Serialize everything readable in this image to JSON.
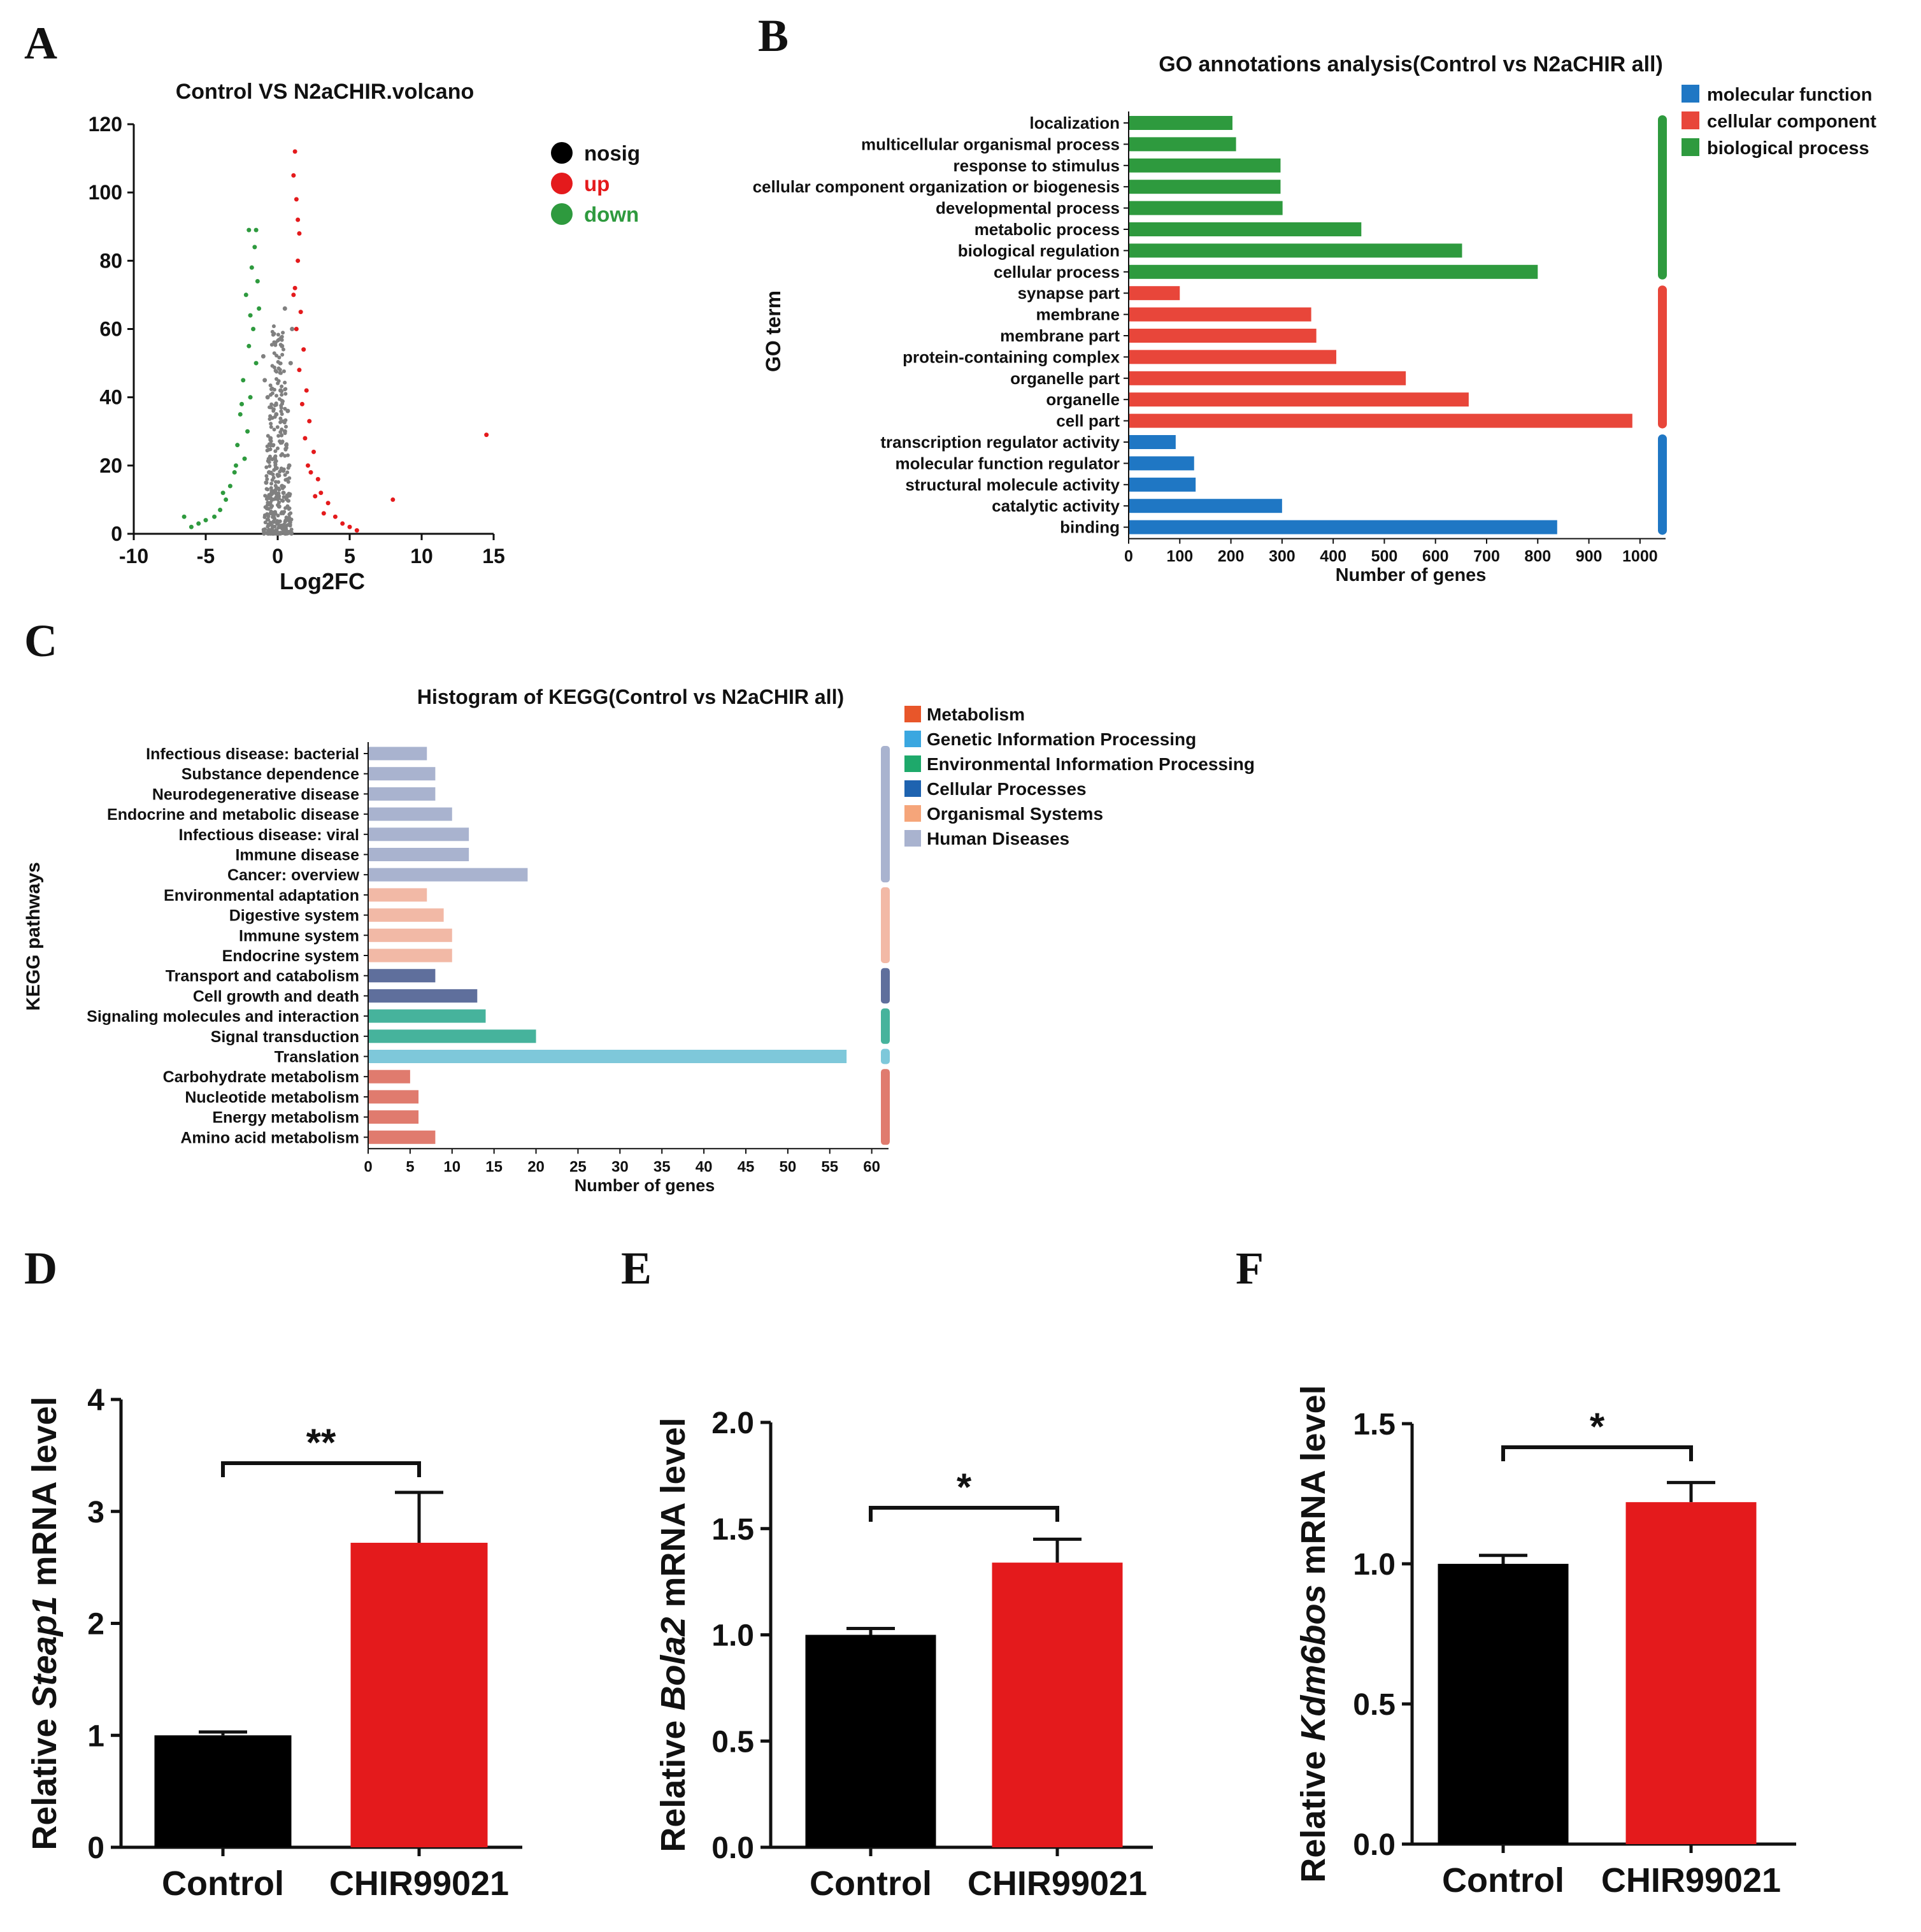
{
  "panels": {
    "A": "A",
    "B": "B",
    "C": "C",
    "D": "D",
    "E": "E",
    "F": "F"
  },
  "colors": {
    "nosig": "#808080",
    "up": "#e41a1c",
    "down": "#2e9a3e",
    "mf": "#1f77c4",
    "cc": "#e8463a",
    "bp": "#2e9a3e",
    "kegg_metabolism": "#e07b6e",
    "kegg_genetic": "#7ec8da",
    "kegg_env": "#46b39c",
    "kegg_cell": "#5f6f9c",
    "kegg_org": "#f2b9a6",
    "kegg_human": "#a9b3cf",
    "legend_metabolism": "#e8562a",
    "legend_genetic": "#3aa7e0",
    "legend_env": "#1ea96b",
    "legend_cell": "#1e63b0",
    "legend_org": "#f5a57a",
    "legend_human": "#a9b3cf",
    "black": "#000000",
    "red": "#e41a1c"
  },
  "chart_data": [
    {
      "id": "A",
      "type": "scatter",
      "title": "Control  VS  N2aCHIR.volcano",
      "xlabel": "Log2FC",
      "ylabel": "",
      "xlim": [
        -10,
        15
      ],
      "ylim": [
        0,
        120
      ],
      "xticks": [
        -10,
        -5,
        0,
        5,
        10,
        15
      ],
      "yticks": [
        0,
        20,
        40,
        60,
        80,
        100,
        120
      ],
      "legend": [
        {
          "label": "nosig",
          "key": "nosig"
        },
        {
          "label": "up",
          "key": "up"
        },
        {
          "label": "down",
          "key": "down"
        }
      ],
      "series": [
        {
          "name": "nosig",
          "points": [
            [
              -0.4,
              10
            ],
            [
              0.3,
              14
            ],
            [
              -0.2,
              22
            ],
            [
              0.5,
              30
            ],
            [
              0.1,
              8
            ],
            [
              -0.6,
              18
            ],
            [
              0.6,
              26
            ],
            [
              -0.1,
              35
            ],
            [
              0.2,
              42
            ],
            [
              -0.3,
              5
            ],
            [
              0.4,
              12
            ],
            [
              0.0,
              3
            ],
            [
              -0.8,
              15
            ],
            [
              0.8,
              20
            ],
            [
              -0.5,
              28
            ],
            [
              0.7,
              36
            ],
            [
              -0.7,
              40
            ],
            [
              0.9,
              50
            ],
            [
              -0.9,
              45
            ],
            [
              0.3,
              55
            ],
            [
              1.0,
              60
            ],
            [
              -1.0,
              52
            ],
            [
              0.5,
              66
            ],
            [
              0.2,
              2
            ],
            [
              -0.1,
              1
            ],
            [
              0.6,
              4
            ],
            [
              -0.4,
              6
            ]
          ]
        },
        {
          "name": "up",
          "points": [
            [
              1.2,
              112
            ],
            [
              1.1,
              105
            ],
            [
              1.3,
              98
            ],
            [
              1.5,
              88
            ],
            [
              1.4,
              80
            ],
            [
              1.2,
              72
            ],
            [
              1.6,
              65
            ],
            [
              1.3,
              60
            ],
            [
              1.8,
              54
            ],
            [
              1.5,
              48
            ],
            [
              2.0,
              42
            ],
            [
              1.7,
              38
            ],
            [
              2.2,
              33
            ],
            [
              1.9,
              28
            ],
            [
              2.5,
              24
            ],
            [
              2.1,
              20
            ],
            [
              2.8,
              16
            ],
            [
              3.0,
              12
            ],
            [
              3.5,
              9
            ],
            [
              3.2,
              6
            ],
            [
              4.0,
              5
            ],
            [
              4.5,
              3
            ],
            [
              5.0,
              2
            ],
            [
              5.5,
              1
            ],
            [
              8.0,
              10
            ],
            [
              14.5,
              29
            ],
            [
              1.1,
              70
            ],
            [
              1.4,
              92
            ],
            [
              2.3,
              18
            ],
            [
              2.6,
              11
            ]
          ]
        },
        {
          "name": "down",
          "points": [
            [
              -1.5,
              89
            ],
            [
              -2.0,
              89
            ],
            [
              -1.6,
              84
            ],
            [
              -1.8,
              78
            ],
            [
              -1.4,
              74
            ],
            [
              -2.2,
              70
            ],
            [
              -1.3,
              66
            ],
            [
              -1.7,
              60
            ],
            [
              -2.0,
              55
            ],
            [
              -1.5,
              50
            ],
            [
              -2.4,
              45
            ],
            [
              -1.9,
              40
            ],
            [
              -2.6,
              35
            ],
            [
              -2.1,
              30
            ],
            [
              -2.8,
              26
            ],
            [
              -2.3,
              22
            ],
            [
              -3.0,
              18
            ],
            [
              -3.3,
              14
            ],
            [
              -3.6,
              10
            ],
            [
              -4.0,
              7
            ],
            [
              -4.4,
              5
            ],
            [
              -5.0,
              4
            ],
            [
              -5.5,
              3
            ],
            [
              -6.0,
              2
            ],
            [
              -6.5,
              5
            ],
            [
              -3.8,
              12
            ],
            [
              -2.9,
              20
            ],
            [
              -1.9,
              64
            ],
            [
              -2.5,
              38
            ]
          ]
        }
      ]
    },
    {
      "id": "B",
      "type": "bar",
      "orientation": "horizontal",
      "title": "GO annotations analysis(Control vs N2aCHIR all)",
      "xlabel": "Number of genes",
      "ylabel": "GO term",
      "xlim": [
        0,
        1050
      ],
      "xticks": [
        0,
        100,
        200,
        300,
        400,
        500,
        600,
        700,
        800,
        900,
        1000
      ],
      "legend": [
        {
          "label": "molecular function",
          "key": "mf"
        },
        {
          "label": "cellular component",
          "key": "cc"
        },
        {
          "label": "biological process",
          "key": "bp"
        }
      ],
      "categories": [
        "localization",
        "multicellular organismal process",
        "response to stimulus",
        "cellular component organization or biogenesis",
        "developmental process",
        "metabolic process",
        "biological regulation",
        "cellular process",
        "synapse part",
        "membrane",
        "membrane part",
        "protein-containing complex",
        "organelle part",
        "organelle",
        "cell part",
        "transcription regulator activity",
        "molecular function regulator",
        "structural molecule activity",
        "catalytic activity",
        "binding"
      ],
      "values": [
        203,
        210,
        297,
        297,
        301,
        455,
        652,
        800,
        100,
        357,
        367,
        406,
        542,
        665,
        985,
        92,
        128,
        131,
        300,
        838
      ],
      "groups": [
        "bp",
        "bp",
        "bp",
        "bp",
        "bp",
        "bp",
        "bp",
        "bp",
        "cc",
        "cc",
        "cc",
        "cc",
        "cc",
        "cc",
        "cc",
        "mf",
        "mf",
        "mf",
        "mf",
        "mf"
      ]
    },
    {
      "id": "C",
      "type": "bar",
      "orientation": "horizontal",
      "title": "Histogram of KEGG(Control vs N2aCHIR all)",
      "xlabel": "Number of genes",
      "ylabel": "KEGG pathways",
      "xlim": [
        0,
        62
      ],
      "xticks": [
        0,
        5,
        10,
        15,
        20,
        25,
        30,
        35,
        40,
        45,
        50,
        55,
        60
      ],
      "legend": [
        {
          "label": "Metabolism",
          "key": "legend_metabolism"
        },
        {
          "label": "Genetic Information Processing",
          "key": "legend_genetic"
        },
        {
          "label": "Environmental Information Processing",
          "key": "legend_env"
        },
        {
          "label": "Cellular Processes",
          "key": "legend_cell"
        },
        {
          "label": "Organismal Systems",
          "key": "legend_org"
        },
        {
          "label": "Human Diseases",
          "key": "legend_human"
        }
      ],
      "categories": [
        "Infectious disease: bacterial",
        "Substance dependence",
        "Neurodegenerative disease",
        "Endocrine and metabolic disease",
        "Infectious disease: viral",
        "Immune disease",
        "Cancer: overview",
        "Environmental adaptation",
        "Digestive system",
        "Immune system",
        "Endocrine system",
        "Transport and catabolism",
        "Cell growth and death",
        "Signaling molecules and interaction",
        "Signal transduction",
        "Translation",
        "Carbohydrate metabolism",
        "Nucleotide metabolism",
        "Energy metabolism",
        "Amino acid metabolism"
      ],
      "values": [
        7,
        8,
        8,
        10,
        12,
        12,
        19,
        7,
        9,
        10,
        10,
        8,
        13,
        14,
        20,
        57,
        5,
        6,
        6,
        8
      ],
      "groups": [
        "kegg_human",
        "kegg_human",
        "kegg_human",
        "kegg_human",
        "kegg_human",
        "kegg_human",
        "kegg_human",
        "kegg_org",
        "kegg_org",
        "kegg_org",
        "kegg_org",
        "kegg_cell",
        "kegg_cell",
        "kegg_env",
        "kegg_env",
        "kegg_genetic",
        "kegg_metabolism",
        "kegg_metabolism",
        "kegg_metabolism",
        "kegg_metabolism"
      ]
    },
    {
      "id": "D",
      "type": "bar",
      "ylabel_pre": "Relative ",
      "ylabel_gene": "Steap1",
      "ylabel_post": " mRNA level",
      "categories": [
        "Control",
        "CHIR99021"
      ],
      "values": [
        1.0,
        2.72
      ],
      "errors": [
        0.03,
        0.45
      ],
      "ylim": [
        0,
        4
      ],
      "yticks": [
        "0",
        "1",
        "2",
        "3",
        "4"
      ],
      "ytick_values": [
        0,
        1,
        2,
        3,
        4
      ],
      "significance": "**"
    },
    {
      "id": "E",
      "type": "bar",
      "ylabel_pre": "Relative ",
      "ylabel_gene": "Bola2",
      "ylabel_post": " mRNA level",
      "categories": [
        "Control",
        "CHIR99021"
      ],
      "values": [
        1.0,
        1.34
      ],
      "errors": [
        0.03,
        0.11
      ],
      "ylim": [
        0,
        2
      ],
      "yticks": [
        "0.0",
        "0.5",
        "1.0",
        "1.5",
        "2.0"
      ],
      "ytick_values": [
        0,
        0.5,
        1,
        1.5,
        2
      ],
      "significance": "*"
    },
    {
      "id": "F",
      "type": "bar",
      "ylabel_pre": "Relative ",
      "ylabel_gene": "Kdm6bos",
      "ylabel_post": " mRNA level",
      "categories": [
        "Control",
        "CHIR99021"
      ],
      "values": [
        1.0,
        1.22
      ],
      "errors": [
        0.03,
        0.07
      ],
      "ylim": [
        0,
        1.5
      ],
      "yticks": [
        "0.0",
        "0.5",
        "1.0",
        "1.5"
      ],
      "ytick_values": [
        0,
        0.5,
        1,
        1.5
      ],
      "significance": "*"
    }
  ]
}
